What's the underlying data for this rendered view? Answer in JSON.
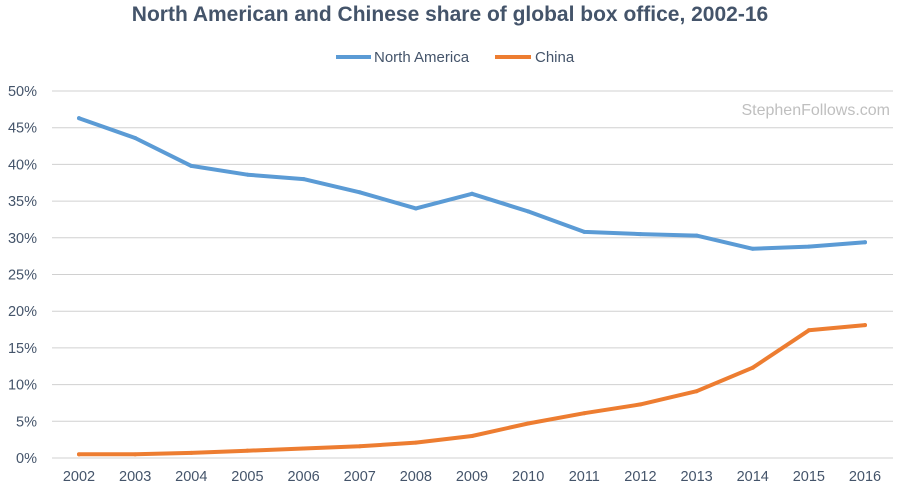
{
  "chart_data": {
    "type": "line",
    "title": "North American and Chinese share of global box office, 2002-16",
    "watermark": "StephenFollows.com",
    "xlabel": "",
    "ylabel": "",
    "ylim": [
      0,
      50
    ],
    "grid": true,
    "legend_position": "top-center",
    "categories": [
      "2002",
      "2003",
      "2004",
      "2005",
      "2006",
      "2007",
      "2008",
      "2009",
      "2010",
      "2011",
      "2012",
      "2013",
      "2014",
      "2015",
      "2016"
    ],
    "y_ticks": [
      "0%",
      "5%",
      "10%",
      "15%",
      "20%",
      "25%",
      "30%",
      "35%",
      "40%",
      "45%",
      "50%"
    ],
    "y_tick_values": [
      0,
      5,
      10,
      15,
      20,
      25,
      30,
      35,
      40,
      45,
      50
    ],
    "series": [
      {
        "name": "North America",
        "color": "#5b9bd5",
        "values": [
          46.3,
          43.6,
          39.8,
          38.6,
          38.0,
          36.2,
          34.0,
          36.0,
          33.6,
          30.8,
          30.5,
          30.3,
          28.5,
          28.8,
          29.4
        ]
      },
      {
        "name": "China",
        "color": "#ed7d31",
        "values": [
          0.5,
          0.5,
          0.7,
          1.0,
          1.3,
          1.6,
          2.1,
          3.0,
          4.7,
          6.1,
          7.3,
          9.1,
          12.3,
          17.4,
          18.1
        ]
      }
    ]
  }
}
